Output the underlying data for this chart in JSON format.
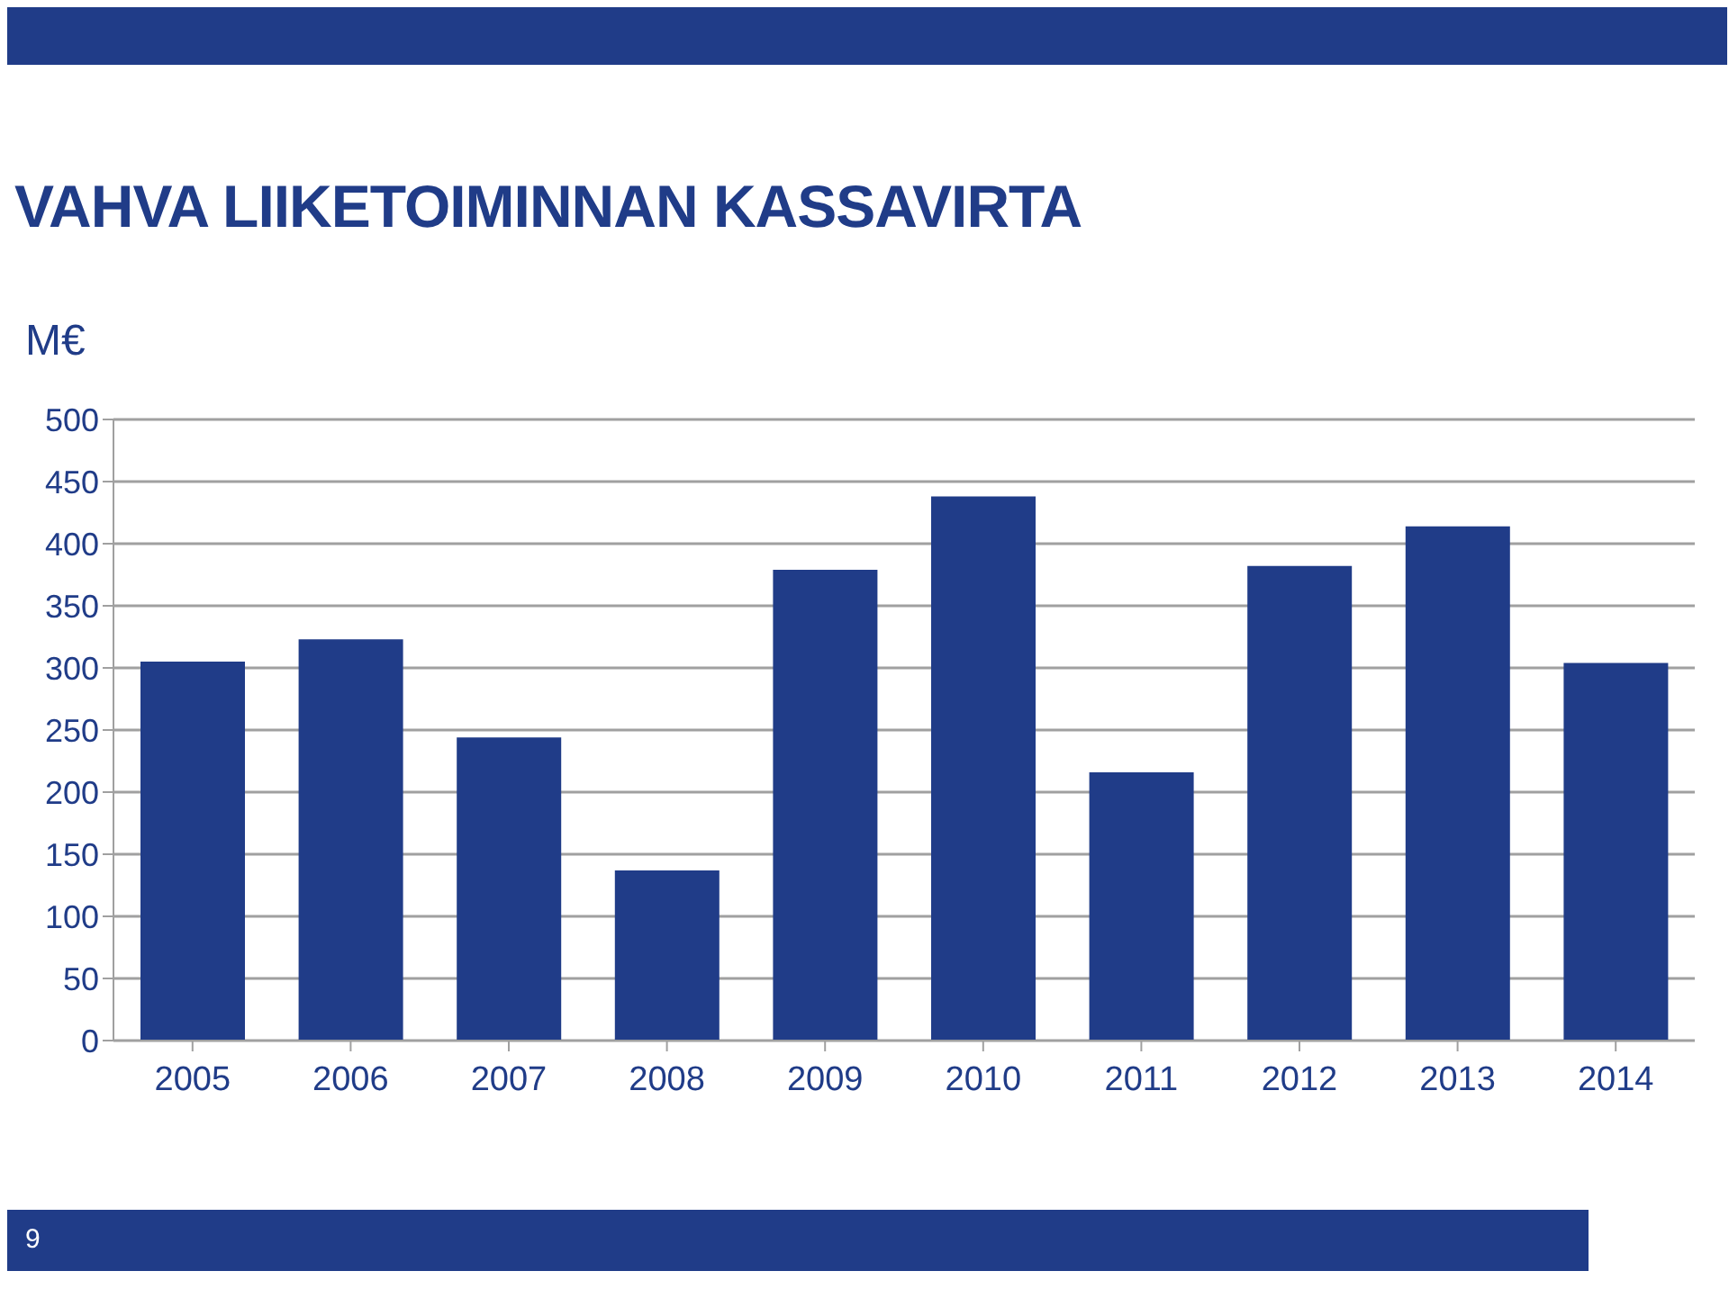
{
  "chart_data": {
    "type": "bar",
    "title": "VAHVA LIIKETOIMINNAN KASSAVIRTA",
    "ylabel": "M€",
    "categories": [
      "2005",
      "2006",
      "2007",
      "2008",
      "2009",
      "2010",
      "2011",
      "2012",
      "2013",
      "2014"
    ],
    "values": [
      305,
      323,
      244,
      137,
      379,
      438,
      216,
      382,
      414,
      304
    ],
    "color": "#203c88",
    "ylim": [
      0,
      500
    ],
    "yticks": [
      0,
      50,
      100,
      150,
      200,
      250,
      300,
      350,
      400,
      450,
      500
    ],
    "grid": "y",
    "annotations": [
      "9"
    ]
  }
}
